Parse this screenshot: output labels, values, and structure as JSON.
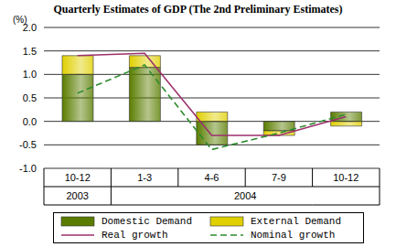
{
  "chart_data": {
    "type": "bar",
    "title": "Quarterly Estimates of GDP (The 2nd Preliminary Estimates)",
    "ylabel": "(%)",
    "categories": [
      "10-12",
      "1-3",
      "4-6",
      "7-9",
      "10-12"
    ],
    "year_labels": [
      "2003",
      "2004",
      null,
      null,
      null
    ],
    "stacked": true,
    "grid": true,
    "legend": "bottom",
    "ylim": [
      -1,
      2
    ],
    "yticks": [
      {
        "value": -1,
        "label": "-1.0"
      },
      {
        "value": -0.5,
        "label": "-0.5"
      },
      {
        "value": 0,
        "label": "0.0"
      },
      {
        "value": 0.5,
        "label": "0.5"
      },
      {
        "value": 1,
        "label": "1.0"
      },
      {
        "value": 1.5,
        "label": "1.5"
      },
      {
        "value": 2,
        "label": "2.0"
      }
    ],
    "series": [
      {
        "name": "Domestic Demand",
        "type": "bar",
        "color": "#5a7d00",
        "values": [
          1.0,
          1.15,
          -0.5,
          -0.2,
          0.2
        ]
      },
      {
        "name": "External Demand",
        "type": "bar",
        "color": "#e0d000",
        "values": [
          0.4,
          0.25,
          0.2,
          -0.1,
          -0.1
        ]
      },
      {
        "name": "Real growth",
        "type": "line",
        "color": "#9c2f6b",
        "line_style": "solid",
        "values": [
          1.4,
          1.45,
          -0.3,
          -0.3,
          0.1
        ]
      },
      {
        "name": "Nominal growth",
        "type": "line",
        "color": "#2e8b2e",
        "line_style": "dashed",
        "values": [
          0.6,
          1.2,
          -0.6,
          -0.25,
          0.15
        ]
      }
    ]
  }
}
